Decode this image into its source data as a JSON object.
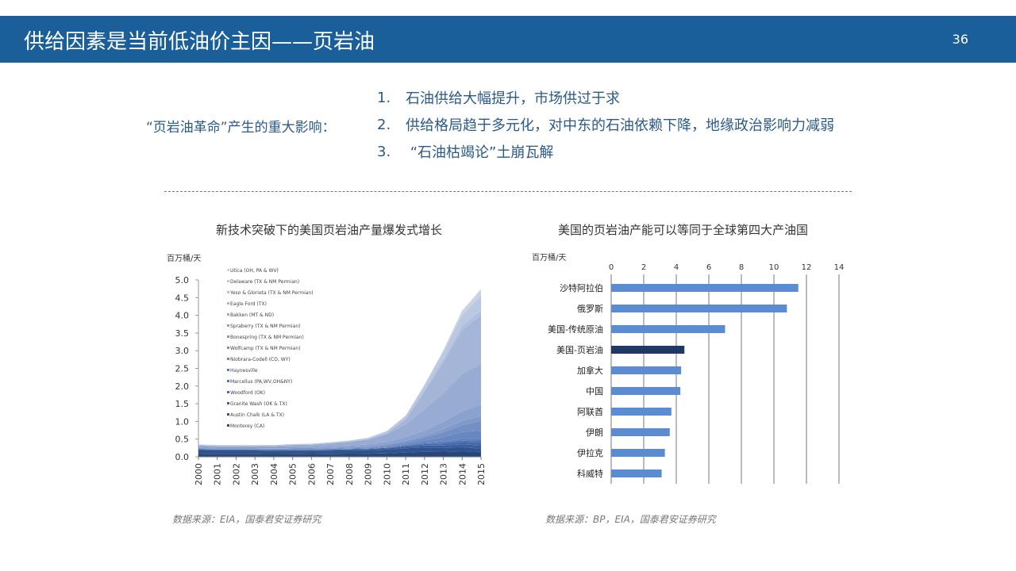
{
  "header": {
    "title": "供给因素是当前低油价主因——页岩油",
    "page_number": "36",
    "background": "#1a5f9a"
  },
  "impact_section": {
    "label": "“页岩油革命”产生的重大影响：",
    "items": [
      {
        "num": "1.",
        "text": "石油供给大幅提升，市场供过于求"
      },
      {
        "num": "2.",
        "text": "供给格局趋于多元化，对中东的石油依赖下降，地缘政治影响力减弱"
      },
      {
        "num": "3.",
        "text": " “石油枯竭论”土崩瓦解"
      }
    ]
  },
  "sources": {
    "left": "数据来源：EIA，国泰君安证券研究",
    "right": "数据来源：BP，EIA，国泰君安证券研究"
  },
  "chart_data": [
    {
      "type": "area",
      "title": "新技术突破下的美国页岩油产量爆发式增长",
      "ylabel": "百万桶/天",
      "ylim": [
        0,
        5.0
      ],
      "yticks": [
        "0.0",
        "0.5",
        "1.0",
        "1.5",
        "2.0",
        "2.5",
        "3.0",
        "3.5",
        "4.0",
        "4.5",
        "5.0"
      ],
      "xticks": [
        "2000",
        "2001",
        "2002",
        "2003",
        "2004",
        "2005",
        "2006",
        "2007",
        "2008",
        "2009",
        "2010",
        "2011",
        "2012",
        "2013",
        "2014",
        "2015"
      ],
      "x": [
        2000,
        2001,
        2002,
        2003,
        2004,
        2005,
        2006,
        2007,
        2008,
        2009,
        2010,
        2011,
        2012,
        2013,
        2014,
        2015
      ],
      "total": [
        0.35,
        0.33,
        0.33,
        0.33,
        0.34,
        0.37,
        0.38,
        0.42,
        0.47,
        0.55,
        0.75,
        1.2,
        2.0,
        2.9,
        3.9,
        4.6
      ],
      "legend_position": "top-left",
      "series": [
        {
          "name": "Utica (OH, PA & WV)",
          "color": "#c9d3e8",
          "share": [
            0,
            0,
            0,
            0,
            0,
            0,
            0,
            0,
            0,
            0,
            0,
            0,
            0.01,
            0.02,
            0.03,
            0.04
          ]
        },
        {
          "name": "Delaware (TX & NM Permian)",
          "color": "#bcc8e2",
          "share": [
            0.06,
            0.06,
            0.06,
            0.06,
            0.06,
            0.06,
            0.06,
            0.06,
            0.06,
            0.06,
            0.06,
            0.06,
            0.06,
            0.07,
            0.08,
            0.09
          ]
        },
        {
          "name": "Yeso & Glorieta (TX & NM Permian)",
          "color": "#b0bfdd",
          "share": [
            0.02,
            0.02,
            0.02,
            0.02,
            0.02,
            0.02,
            0.02,
            0.02,
            0.02,
            0.03,
            0.03,
            0.03,
            0.03,
            0.03,
            0.03,
            0.03
          ]
        },
        {
          "name": "Eagle Ford (TX)",
          "color": "#a4b5d8",
          "share": [
            0,
            0,
            0,
            0,
            0,
            0,
            0,
            0,
            0,
            0,
            0.02,
            0.12,
            0.25,
            0.3,
            0.32,
            0.3
          ]
        },
        {
          "name": "Bakken (MT & ND)",
          "color": "#98acd3",
          "share": [
            0.05,
            0.05,
            0.05,
            0.06,
            0.08,
            0.12,
            0.15,
            0.18,
            0.22,
            0.26,
            0.3,
            0.3,
            0.3,
            0.28,
            0.27,
            0.25
          ]
        },
        {
          "name": "Spraberry (TX & NM Permian)",
          "color": "#8ca2ce",
          "share": [
            0.12,
            0.12,
            0.12,
            0.12,
            0.12,
            0.11,
            0.1,
            0.1,
            0.09,
            0.09,
            0.09,
            0.08,
            0.07,
            0.07,
            0.07,
            0.07
          ]
        },
        {
          "name": "Bonespring (TX & NM Permian)",
          "color": "#8099c9",
          "share": [
            0.03,
            0.03,
            0.03,
            0.03,
            0.03,
            0.03,
            0.03,
            0.03,
            0.03,
            0.03,
            0.03,
            0.03,
            0.03,
            0.03,
            0.03,
            0.03
          ]
        },
        {
          "name": "Wolfcamp (TX & NM Permian)",
          "color": "#748fc4",
          "share": [
            0.05,
            0.05,
            0.05,
            0.05,
            0.05,
            0.05,
            0.05,
            0.05,
            0.05,
            0.05,
            0.05,
            0.04,
            0.04,
            0.05,
            0.05,
            0.06
          ]
        },
        {
          "name": "Niobrara-Codell (CO, WY)",
          "color": "#6886bf",
          "share": [
            0.02,
            0.02,
            0.02,
            0.02,
            0.02,
            0.02,
            0.02,
            0.02,
            0.02,
            0.02,
            0.02,
            0.02,
            0.03,
            0.04,
            0.05,
            0.05
          ]
        },
        {
          "name": "Haynesville",
          "color": "#5c7dba",
          "share": [
            0.02,
            0.02,
            0.02,
            0.02,
            0.02,
            0.02,
            0.02,
            0.02,
            0.02,
            0.02,
            0.02,
            0.02,
            0.01,
            0.01,
            0.01,
            0.01
          ]
        },
        {
          "name": "Marcellus (PA,WV,OH&NY)",
          "color": "#5174b5",
          "share": [
            0,
            0,
            0,
            0,
            0,
            0,
            0,
            0,
            0,
            0,
            0.01,
            0.01,
            0.01,
            0.01,
            0.01,
            0.01
          ]
        },
        {
          "name": "Woodford (OK)",
          "color": "#466aaa",
          "share": [
            0.02,
            0.02,
            0.02,
            0.02,
            0.02,
            0.02,
            0.02,
            0.02,
            0.02,
            0.02,
            0.02,
            0.02,
            0.02,
            0.02,
            0.02,
            0.02
          ]
        },
        {
          "name": "Granite Wash (OK & TX)",
          "color": "#3b5f9c",
          "share": [
            0.06,
            0.06,
            0.06,
            0.06,
            0.06,
            0.06,
            0.06,
            0.06,
            0.06,
            0.06,
            0.05,
            0.04,
            0.03,
            0.02,
            0.02,
            0.02
          ]
        },
        {
          "name": "Austin Chalk (LA & TX)",
          "color": "#31538c",
          "share": [
            0.3,
            0.3,
            0.3,
            0.29,
            0.27,
            0.25,
            0.24,
            0.22,
            0.2,
            0.18,
            0.14,
            0.1,
            0.06,
            0.04,
            0.03,
            0.02
          ]
        },
        {
          "name": "Monterey (CA)",
          "color": "#27467a",
          "share": [
            0.25,
            0.25,
            0.25,
            0.25,
            0.23,
            0.22,
            0.21,
            0.2,
            0.19,
            0.16,
            0.13,
            0.1,
            0.07,
            0.05,
            0.04,
            0.03
          ]
        }
      ]
    },
    {
      "type": "bar",
      "orientation": "horizontal",
      "title": "美国的页岩油产能可以等同于全球第四大产油国",
      "ylabel": "百万桶/天",
      "xlim": [
        0,
        14
      ],
      "xticks": [
        "0",
        "2",
        "4",
        "6",
        "8",
        "10",
        "12",
        "14"
      ],
      "categories": [
        "沙特阿拉伯",
        "俄罗斯",
        "美国-传统原油",
        "美国-页岩油",
        "加拿大",
        "中国",
        "阿联酋",
        "伊朗",
        "伊拉克",
        "科威特"
      ],
      "values": [
        11.5,
        10.8,
        7.0,
        4.5,
        4.3,
        4.25,
        3.7,
        3.6,
        3.3,
        3.1
      ],
      "bar_color": "#5b8bd0",
      "highlight_color": "#1f3864",
      "highlight_category": "美国-页岩油"
    }
  ]
}
